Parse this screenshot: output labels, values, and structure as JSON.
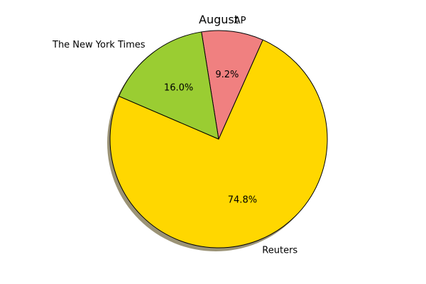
{
  "chart_data": {
    "type": "pie",
    "title": "August",
    "categories": [
      "AP",
      "The New York Times",
      "Reuters"
    ],
    "values": [
      9.2,
      16.0,
      74.8
    ],
    "percent_labels": [
      "9.2%",
      "16.0%",
      "74.8%"
    ],
    "colors": [
      "#F08080",
      "#9ACD32",
      "#FFD700"
    ],
    "start_angle_deg": 66,
    "direction": "counterclockwise",
    "shadow": true,
    "edgecolor": "#000000"
  }
}
